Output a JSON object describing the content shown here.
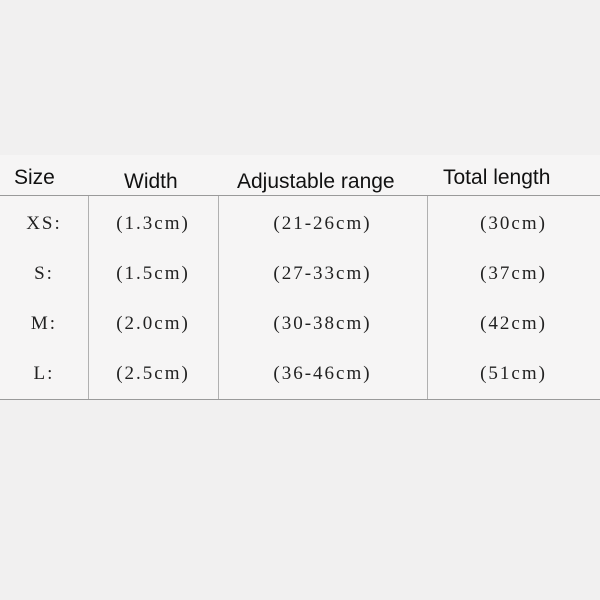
{
  "table": {
    "header": [
      "Size",
      "Width",
      "Adjustable range",
      "Total length"
    ],
    "rows": [
      [
        "XS:",
        "(1.3cm)",
        "(21-26cm)",
        "(30cm)"
      ],
      [
        "S:",
        "(1.5cm)",
        "(27-33cm)",
        "(37cm)"
      ],
      [
        "M:",
        "(2.0cm)",
        "(30-38cm)",
        "(42cm)"
      ],
      [
        "L:",
        "(2.5cm)",
        "(36-46cm)",
        "(51cm)"
      ]
    ]
  }
}
